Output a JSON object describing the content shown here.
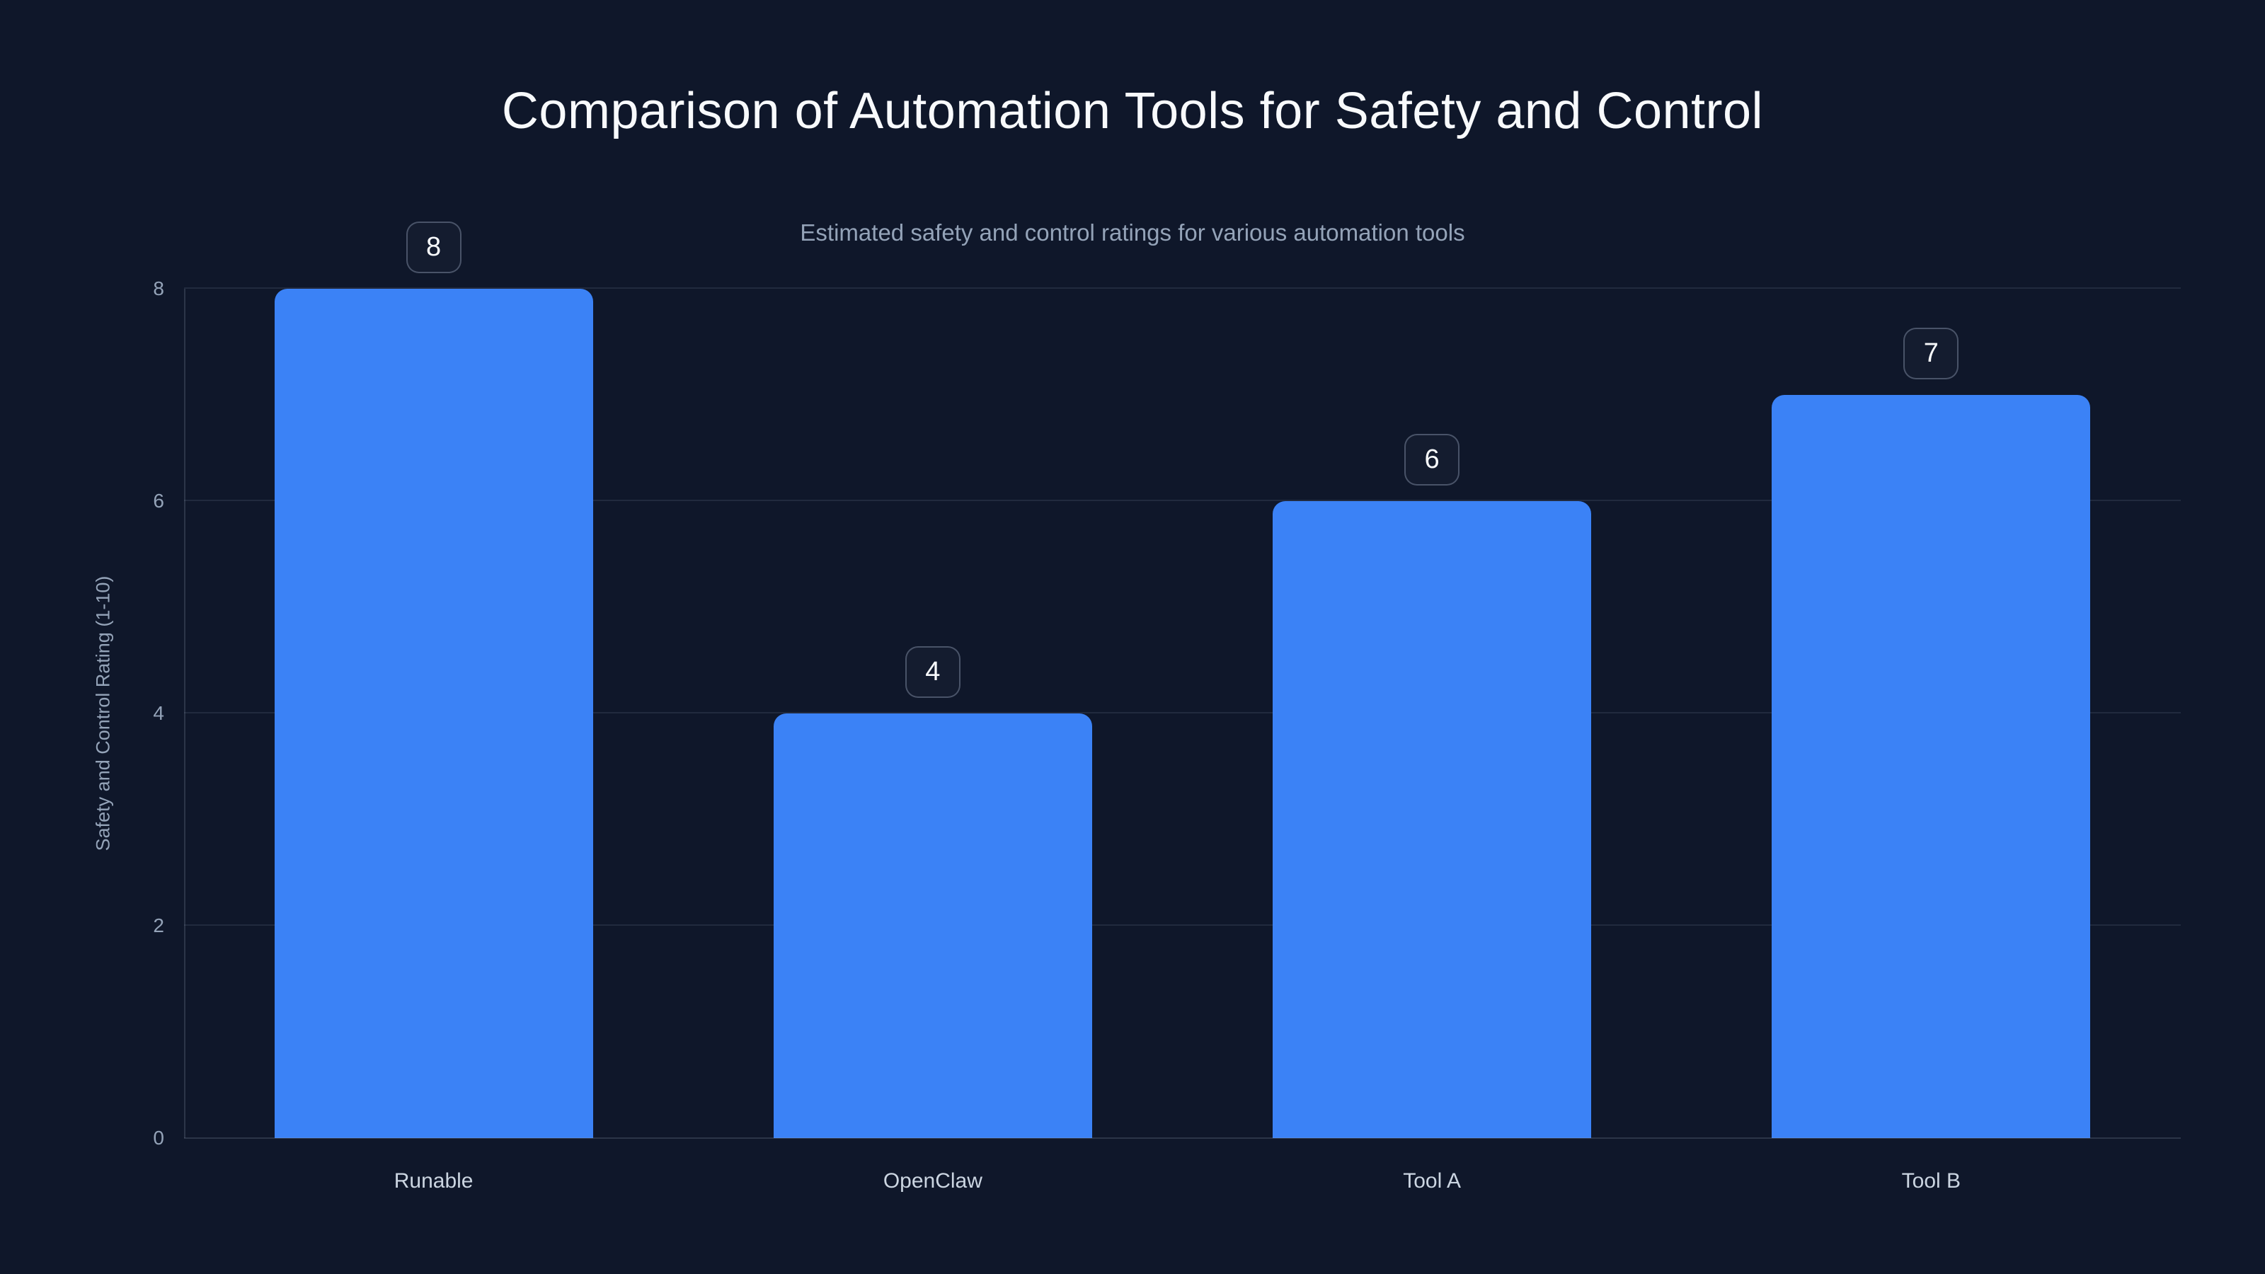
{
  "chart_data": {
    "type": "bar",
    "title": "Comparison of Automation Tools for Safety and Control",
    "subtitle": "Estimated safety and control ratings for various automation tools",
    "categories": [
      "Runable",
      "OpenClaw",
      "Tool A",
      "Tool B"
    ],
    "values": [
      8,
      4,
      6,
      7
    ],
    "data_labels": [
      "8",
      "4",
      "6",
      "7"
    ],
    "xlabel": "",
    "ylabel": "Safety and Control Rating (1-10)",
    "ylim": [
      0,
      8
    ],
    "yticks": [
      0,
      2,
      4,
      6,
      8
    ],
    "grid": true,
    "legend": "none",
    "orientation": "vertical"
  },
  "colors": {
    "background": "#0f172a",
    "bar": "#3b82f6",
    "title": "#f8fafc",
    "subtitle": "#94a3b8",
    "tick_label": "#94a3b8",
    "category_label": "#cbd5e1",
    "axis_title": "#94a3b8",
    "gridline": "rgba(148,163,184,0.14)",
    "axis_line": "rgba(148,163,184,0.22)",
    "badge_border": "rgba(148,163,184,0.42)",
    "badge_background": "rgba(148,163,184,0.04)",
    "badge_text": "#f8fafc"
  }
}
